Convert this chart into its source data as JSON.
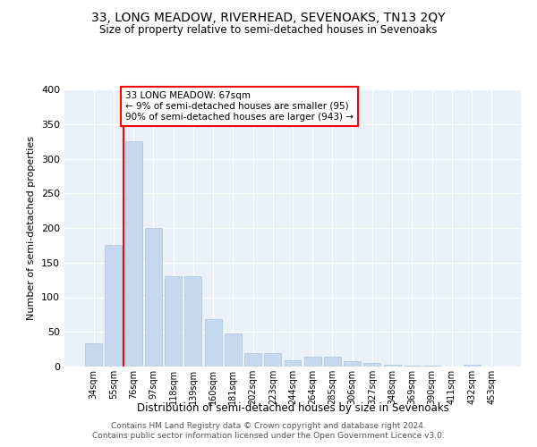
{
  "title": "33, LONG MEADOW, RIVERHEAD, SEVENOAKS, TN13 2QY",
  "subtitle": "Size of property relative to semi-detached houses in Sevenoaks",
  "xlabel": "Distribution of semi-detached houses by size in Sevenoaks",
  "ylabel": "Number of semi-detached properties",
  "categories": [
    "34sqm",
    "55sqm",
    "76sqm",
    "97sqm",
    "118sqm",
    "139sqm",
    "160sqm",
    "181sqm",
    "202sqm",
    "223sqm",
    "244sqm",
    "264sqm",
    "285sqm",
    "306sqm",
    "327sqm",
    "348sqm",
    "369sqm",
    "390sqm",
    "411sqm",
    "432sqm",
    "453sqm"
  ],
  "values": [
    33,
    176,
    325,
    200,
    130,
    130,
    68,
    48,
    20,
    20,
    9,
    14,
    14,
    8,
    5,
    3,
    1,
    1,
    0,
    3,
    0
  ],
  "bar_color": "#c5d8ed",
  "bar_edge_color": "#a8c4dc",
  "vline_x": 1.5,
  "vline_color": "red",
  "annotation_text": "33 LONG MEADOW: 67sqm\n← 9% of semi-detached houses are smaller (95)\n90% of semi-detached houses are larger (943) →",
  "annotation_box_color": "white",
  "annotation_box_edge_color": "red",
  "ylim": [
    0,
    400
  ],
  "yticks": [
    0,
    50,
    100,
    150,
    200,
    250,
    300,
    350,
    400
  ],
  "bg_color": "#eaf0f8",
  "grid_color": "white",
  "footer1": "Contains HM Land Registry data © Crown copyright and database right 2024.",
  "footer2": "Contains public sector information licensed under the Open Government Licence v3.0."
}
